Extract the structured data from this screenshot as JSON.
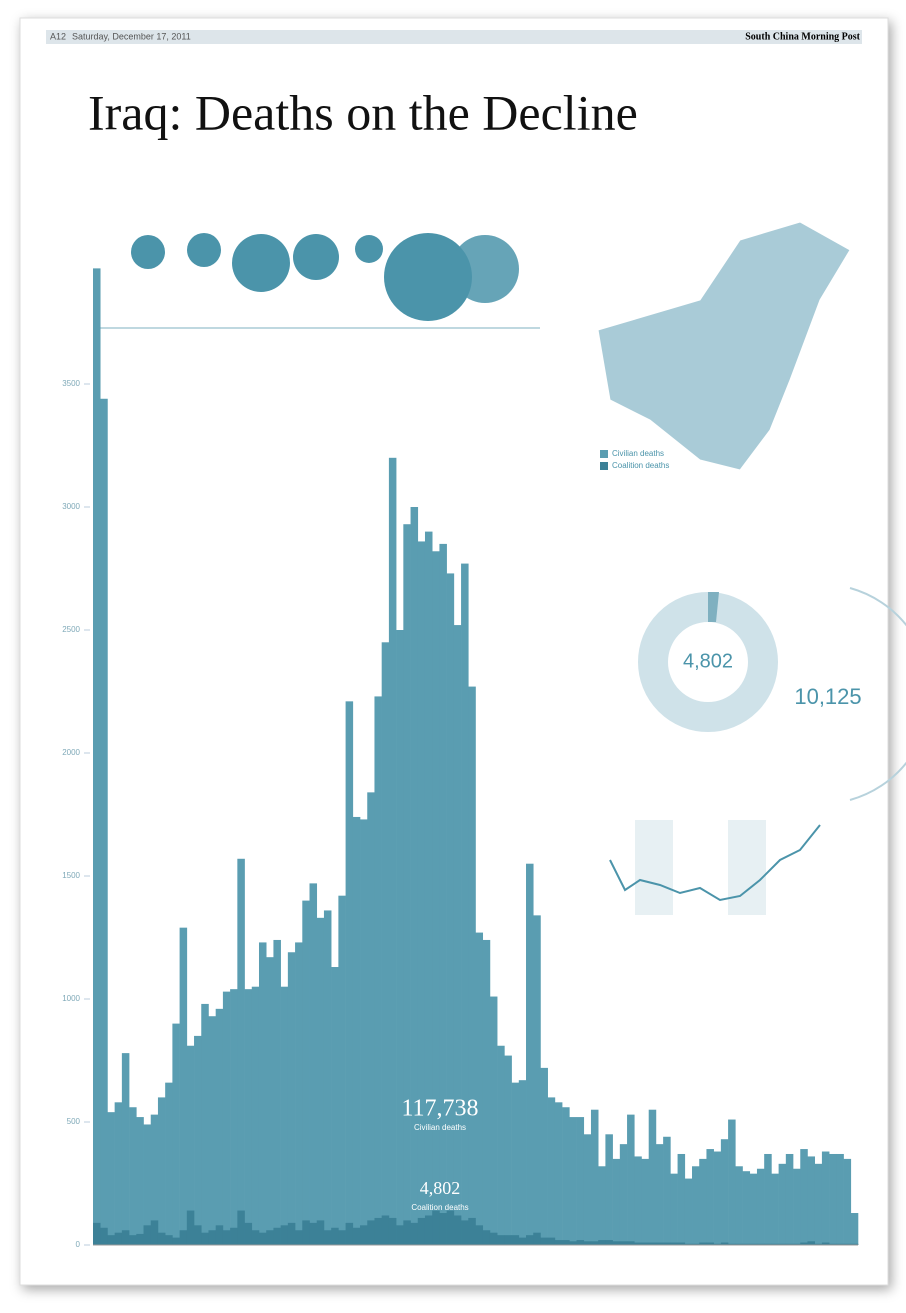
{
  "page": {
    "section": "A12",
    "date": "Saturday, December 17, 2011",
    "masthead": "South China Morning Post"
  },
  "chart_data": {
    "type": "bar",
    "title": "Iraq: Deaths on the Decline",
    "categories": [
      null,
      null,
      null,
      null,
      null,
      null,
      null,
      null,
      null,
      null,
      null,
      null,
      null,
      null,
      null,
      null,
      null,
      null,
      null,
      null,
      null,
      null,
      null,
      null,
      null,
      null,
      null,
      null,
      null,
      null,
      null,
      null,
      null,
      null,
      null,
      null,
      null,
      null,
      null,
      null,
      null,
      null,
      null,
      null,
      null,
      null,
      null,
      null,
      null,
      null,
      null,
      null,
      null,
      null,
      null,
      null,
      null,
      null,
      null,
      null,
      null,
      null,
      null,
      null,
      null,
      null,
      null,
      null,
      null,
      null,
      null,
      null,
      null,
      null,
      null,
      null,
      null,
      null,
      null,
      null,
      null,
      null,
      null,
      null,
      null,
      null,
      null,
      null,
      null,
      null,
      null,
      null,
      null,
      null,
      null,
      null,
      null,
      null,
      null,
      null,
      null,
      null,
      null,
      null,
      null,
      null
    ],
    "series": [
      {
        "name": "Civilian deaths",
        "color": "#5a9db1",
        "values": [
          3970,
          3440,
          540,
          580,
          780,
          560,
          520,
          490,
          530,
          600,
          660,
          900,
          1290,
          810,
          850,
          980,
          930,
          960,
          1030,
          1040,
          1570,
          1040,
          1050,
          1230,
          1170,
          1240,
          1050,
          1190,
          1230,
          1400,
          1470,
          1330,
          1360,
          1130,
          1420,
          2210,
          1740,
          1730,
          1840,
          2230,
          2450,
          3200,
          2500,
          2930,
          3000,
          2860,
          2900,
          2820,
          2850,
          2730,
          2520,
          2770,
          2270,
          1270,
          1240,
          1010,
          810,
          770,
          660,
          670,
          1550,
          1340,
          720,
          600,
          580,
          560,
          520,
          520,
          450,
          550,
          320,
          450,
          350,
          410,
          530,
          360,
          350,
          550,
          410,
          440,
          290,
          370,
          270,
          320,
          350,
          390,
          380,
          430,
          510,
          320,
          300,
          290,
          310,
          370,
          290,
          330,
          370,
          310,
          390,
          360,
          330,
          380,
          370,
          370,
          350,
          130
        ]
      },
      {
        "name": "Coalition deaths",
        "color": "#3c8197",
        "values": [
          90,
          70,
          40,
          50,
          60,
          40,
          45,
          80,
          100,
          50,
          40,
          30,
          60,
          140,
          80,
          50,
          60,
          80,
          60,
          70,
          140,
          90,
          60,
          50,
          60,
          70,
          80,
          90,
          60,
          100,
          90,
          100,
          60,
          70,
          60,
          90,
          70,
          80,
          100,
          110,
          120,
          110,
          80,
          100,
          90,
          110,
          120,
          140,
          130,
          140,
          120,
          100,
          110,
          80,
          60,
          50,
          40,
          40,
          40,
          30,
          40,
          50,
          30,
          30,
          20,
          20,
          15,
          20,
          15,
          15,
          20,
          20,
          15,
          15,
          15,
          10,
          10,
          10,
          10,
          10,
          10,
          10,
          5,
          5,
          10,
          10,
          5,
          10,
          5,
          5,
          5,
          5,
          5,
          5,
          5,
          5,
          5,
          5,
          10,
          15,
          5,
          10,
          5,
          5,
          5,
          5
        ]
      }
    ],
    "ylim": [
      0,
      4000
    ],
    "yticks": [
      0,
      500,
      1000,
      1500,
      2000,
      2500,
      3000,
      3500
    ],
    "annotations": [
      {
        "value": "117,738",
        "label": "Civilian deaths"
      },
      {
        "value": "4,802",
        "label": "Coalition deaths"
      }
    ],
    "donut": {
      "center": "4,802",
      "side": "10,125"
    }
  }
}
